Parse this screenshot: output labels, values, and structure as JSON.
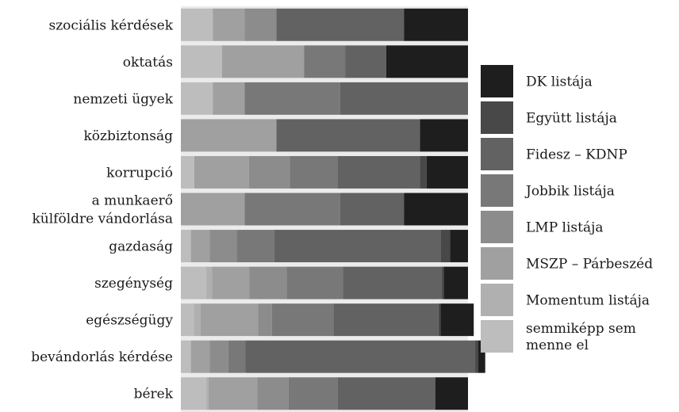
{
  "colors": {
    "panel_background": "#ebebeb",
    "gridline": "#ffffff"
  },
  "chart_data": {
    "type": "bar",
    "orientation": "horizontal",
    "stacked": true,
    "normalized": true,
    "xlim": [
      0,
      1
    ],
    "legend_position": "right",
    "categories": [
      "szociális kérdések",
      "oktatás",
      "nemzeti ügyek",
      "közbiztonság",
      "korrupció",
      "a munkaerő\nkülföldre vándorlása",
      "gazdaság",
      "szegénység",
      "egészségügy",
      "bevándorlás kérdése",
      "bérek"
    ],
    "series": [
      {
        "name": "semmiképp sem menne el",
        "color": "#bdbdbd",
        "values": [
          0.111,
          0.143,
          0.111,
          0.0,
          0.047,
          0.0,
          0.035,
          0.088,
          0.045,
          0.035,
          0.088
        ]
      },
      {
        "name": "Momentum listája",
        "color": "#b0b0b0",
        "values": [
          0.0,
          0.0,
          0.0,
          0.0,
          0.0,
          0.0,
          0.0,
          0.021,
          0.024,
          0.0,
          0.008
        ]
      },
      {
        "name": "MSZP – Párbeszéd",
        "color": "#a0a0a0",
        "values": [
          0.111,
          0.286,
          0.111,
          0.333,
          0.19,
          0.222,
          0.065,
          0.129,
          0.2,
          0.065,
          0.17
        ]
      },
      {
        "name": "LMP listája",
        "color": "#8c8c8c",
        "values": [
          0.111,
          0.0,
          0.0,
          0.0,
          0.143,
          0.0,
          0.095,
          0.13,
          0.048,
          0.065,
          0.109
        ]
      },
      {
        "name": "Jobbik listája",
        "color": "#787878",
        "values": [
          0.0,
          0.143,
          0.333,
          0.0,
          0.167,
          0.333,
          0.13,
          0.196,
          0.215,
          0.06,
          0.171
        ]
      },
      {
        "name": "Fidesz – KDNP",
        "color": "#626262",
        "values": [
          0.444,
          0.143,
          0.445,
          0.5,
          0.285,
          0.222,
          0.58,
          0.345,
          0.365,
          0.8,
          0.34
        ]
      },
      {
        "name": "Együtt listája",
        "color": "#484848",
        "values": [
          0.0,
          0.0,
          0.0,
          0.0,
          0.024,
          0.0,
          0.033,
          0.007,
          0.007,
          0.01,
          0.0
        ]
      },
      {
        "name": "DK listája",
        "color": "#1e1e1e",
        "values": [
          0.223,
          0.285,
          0.0,
          0.167,
          0.144,
          0.223,
          0.062,
          0.084,
          0.116,
          0.025,
          0.114
        ]
      }
    ],
    "legend_order": [
      "DK listája",
      "Együtt listája",
      "Fidesz – KDNP",
      "Jobbik listája",
      "LMP listája",
      "MSZP – Párbeszéd",
      "Momentum listája",
      "semmiképp sem\nmenne el"
    ]
  }
}
